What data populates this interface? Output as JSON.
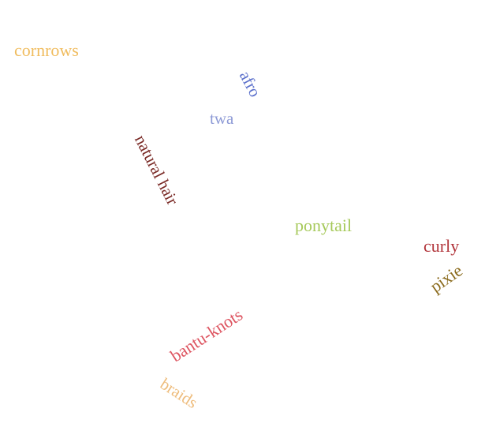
{
  "words": [
    {
      "text": "cornrows",
      "color": "#f0bc5e"
    },
    {
      "text": "afro",
      "color": "#5a6fcb"
    },
    {
      "text": "twa",
      "color": "#8d9ad6"
    },
    {
      "text": "natural hair",
      "color": "#7a2a26"
    },
    {
      "text": "ponytail",
      "color": "#a6c95a"
    },
    {
      "text": "curly",
      "color": "#b1343a"
    },
    {
      "text": "pixie",
      "color": "#8a6a1c"
    },
    {
      "text": "bantu-knots",
      "color": "#dd5460"
    },
    {
      "text": "braids",
      "color": "#eebc7c"
    }
  ]
}
